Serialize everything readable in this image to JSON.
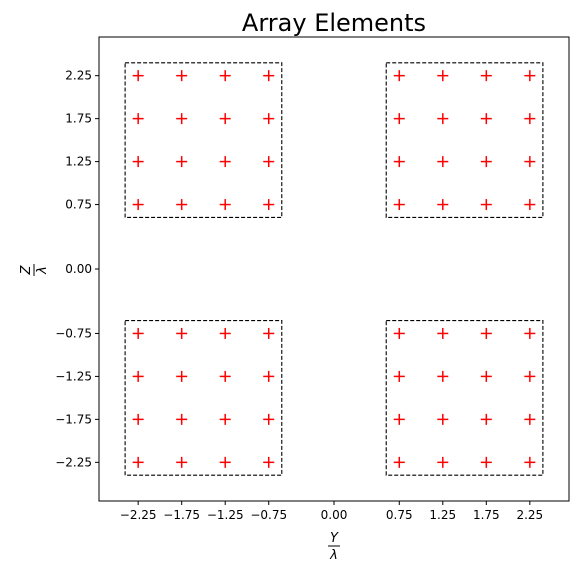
{
  "chart_data": {
    "type": "scatter",
    "title": "Array Elements",
    "xlabel": {
      "numerator": "Y",
      "denominator": "λ"
    },
    "ylabel": {
      "numerator": "Z",
      "denominator": "λ"
    },
    "xlim": [
      -2.7,
      2.7
    ],
    "ylim": [
      -2.7,
      2.7
    ],
    "x_ticks": [
      -2.25,
      -1.75,
      -1.25,
      -0.75,
      0.0,
      0.75,
      1.25,
      1.75,
      2.25
    ],
    "x_tick_labels": [
      "−2.25",
      "−1.75",
      "−1.25",
      "−0.75",
      "0.00",
      "0.75",
      "1.25",
      "1.75",
      "2.25"
    ],
    "y_ticks": [
      2.25,
      1.75,
      1.25,
      0.75,
      0.0,
      -0.75,
      -1.25,
      -1.75,
      -2.25
    ],
    "y_tick_labels": [
      "2.25",
      "1.75",
      "1.25",
      "0.75",
      "0.00",
      "−0.75",
      "−1.25",
      "−1.75",
      "−2.25"
    ],
    "grid": false,
    "marker": "+",
    "marker_color": "#ff0000",
    "subarray_box_color": "#000000",
    "element_positions_1d": [
      -2.25,
      -1.75,
      -1.25,
      -0.75,
      0.75,
      1.25,
      1.75,
      2.25
    ],
    "subarray_boxes": [
      {
        "y_range": [
          -2.4,
          -0.6
        ],
        "z_range": [
          0.6,
          2.4
        ]
      },
      {
        "y_range": [
          0.6,
          2.4
        ],
        "z_range": [
          0.6,
          2.4
        ]
      },
      {
        "y_range": [
          -2.4,
          -0.6
        ],
        "z_range": [
          -2.4,
          -0.6
        ]
      },
      {
        "y_range": [
          0.6,
          2.4
        ],
        "z_range": [
          -2.4,
          -0.6
        ]
      }
    ]
  }
}
